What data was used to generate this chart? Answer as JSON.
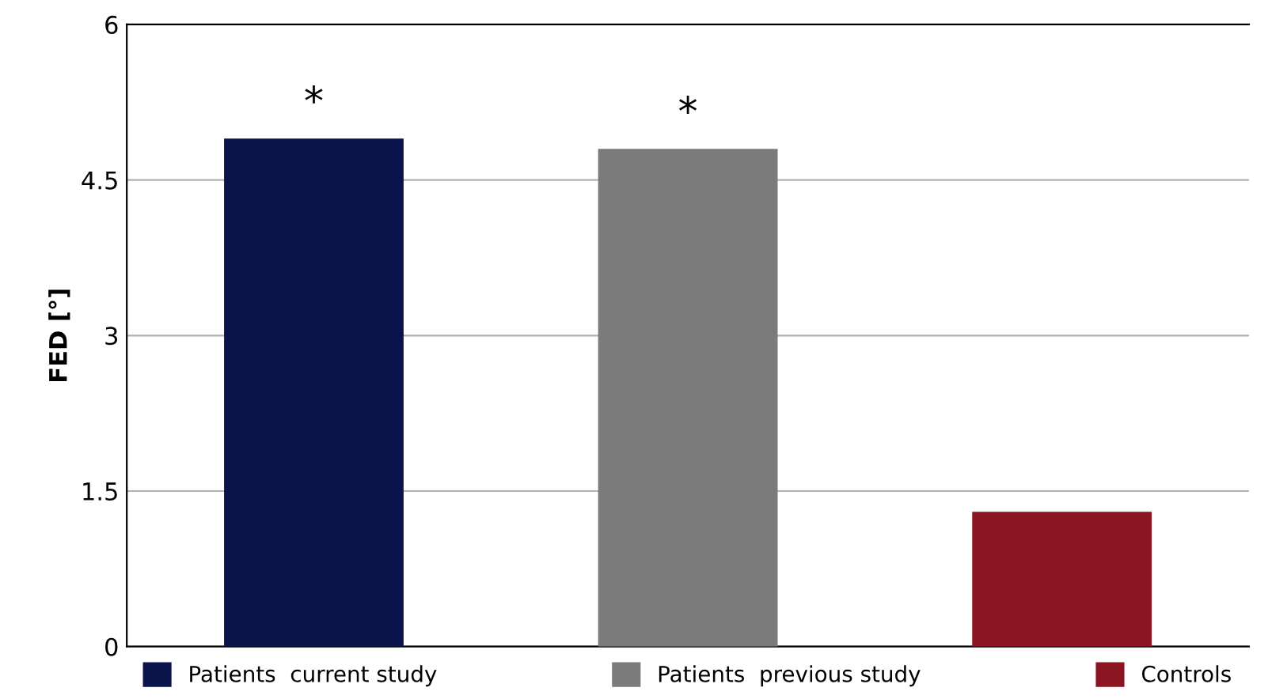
{
  "chart_data": {
    "type": "bar",
    "ylabel": "FED [°]",
    "categories": [
      null,
      null,
      null
    ],
    "series": [
      {
        "name": "Patients  current study",
        "color": "#0b144a",
        "values": [
          4.9,
          null,
          null
        ]
      },
      {
        "name": "Patients  previous study",
        "color": "#7a7b7a",
        "values": [
          null,
          4.8,
          null
        ]
      },
      {
        "name": "Controls",
        "color": "#8b1520",
        "values": [
          null,
          null,
          1.3
        ]
      }
    ],
    "ylim": [
      0,
      6
    ],
    "yticks": [
      0,
      1.5,
      3,
      4.5,
      6
    ],
    "grid": "y",
    "legend": "bottom",
    "annotations": [
      {
        "text": "*",
        "y": 4.9
      },
      {
        "text": "*",
        "y": 4.8
      }
    ]
  }
}
